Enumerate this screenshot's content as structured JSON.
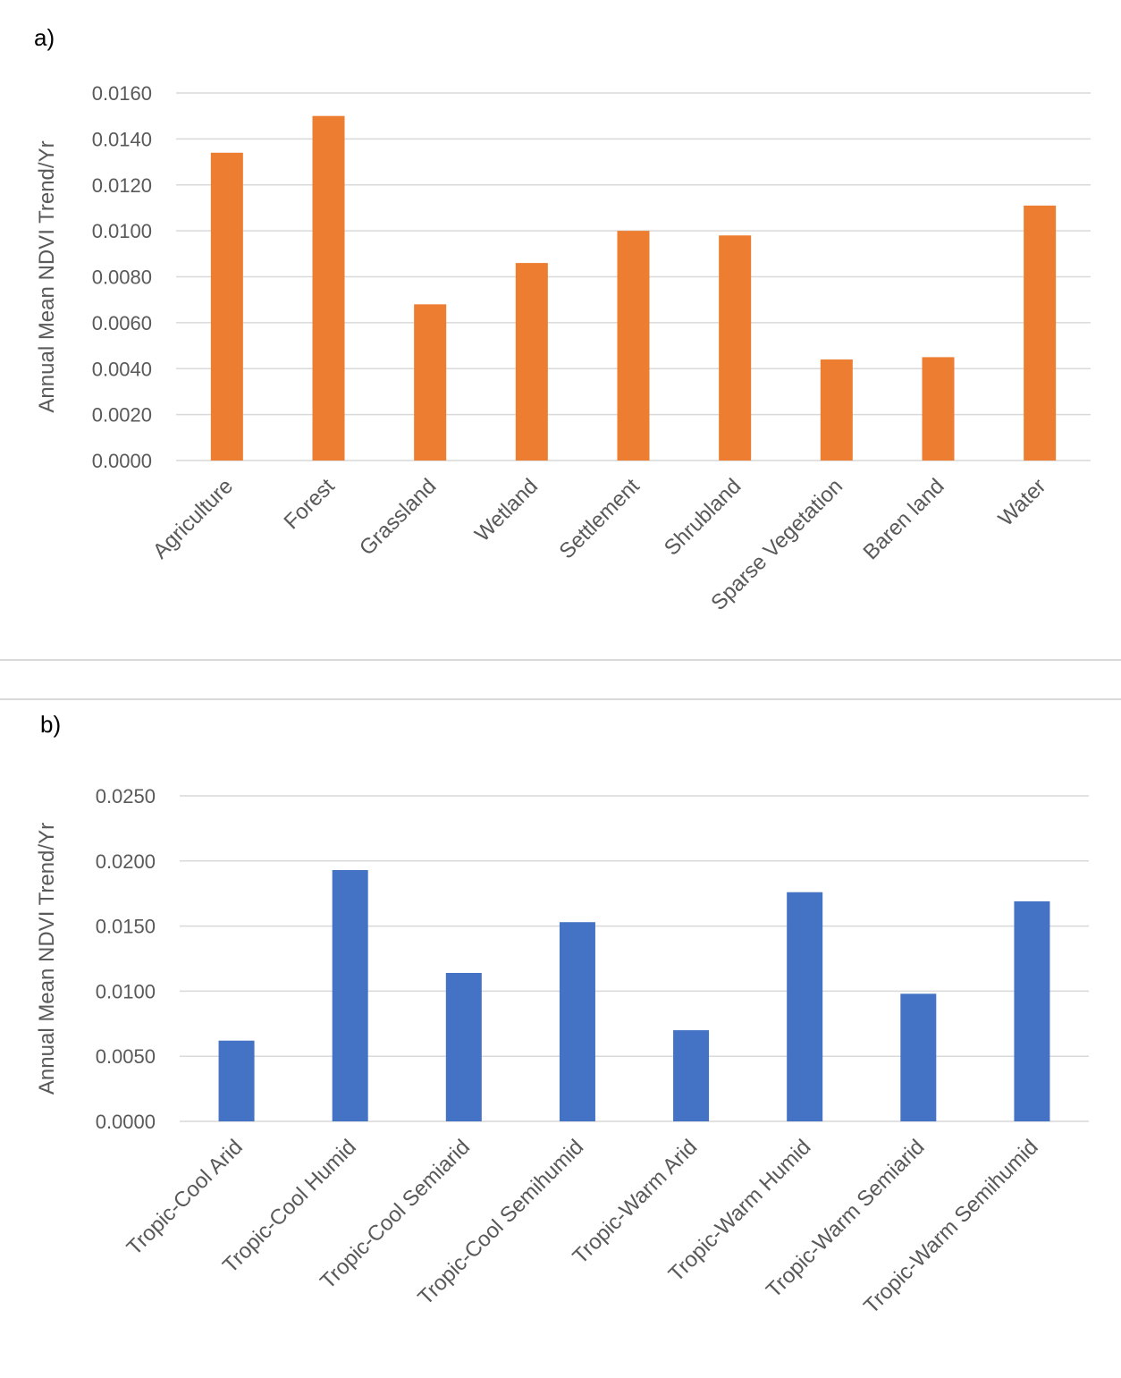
{
  "chart_data": [
    {
      "type": "bar",
      "panel_label": "a)",
      "title": "",
      "xlabel": "",
      "ylabel": "Annual Mean NDVI Trend/Yr",
      "ylim": [
        0,
        0.016
      ],
      "yticks": [
        "0.0000",
        "0.0020",
        "0.0040",
        "0.0060",
        "0.0080",
        "0.0100",
        "0.0120",
        "0.0140",
        "0.0160"
      ],
      "grid": true,
      "color": "#ED7D31",
      "categories": [
        "Agriculture",
        "Forest",
        "Grassland",
        "Wetland",
        "Settlement",
        "Shrubland",
        "Sparse Vegetation",
        "Baren land",
        "Water"
      ],
      "values": [
        0.0134,
        0.015,
        0.0068,
        0.0086,
        0.01,
        0.0098,
        0.0044,
        0.0045,
        0.0111
      ]
    },
    {
      "type": "bar",
      "panel_label": "b)",
      "title": "",
      "xlabel": "",
      "ylabel": "Annual Mean NDVI Trend/Yr",
      "ylim": [
        0,
        0.025
      ],
      "yticks": [
        "0.0000",
        "0.0050",
        "0.0100",
        "0.0150",
        "0.0200",
        "0.0250"
      ],
      "grid": true,
      "color": "#4472C4",
      "categories": [
        "Tropic-Cool Arid",
        "Tropic-Cool Humid",
        "Tropic-Cool Semiarid",
        "Tropic-Cool Semihumid",
        "Tropic-Warm Arid",
        "Tropic-Warm Humid",
        "Tropic-Warm Semiarid",
        "Tropic-Warm Semihumid"
      ],
      "values": [
        0.0062,
        0.0193,
        0.0114,
        0.0153,
        0.007,
        0.0176,
        0.0098,
        0.0169
      ]
    }
  ]
}
